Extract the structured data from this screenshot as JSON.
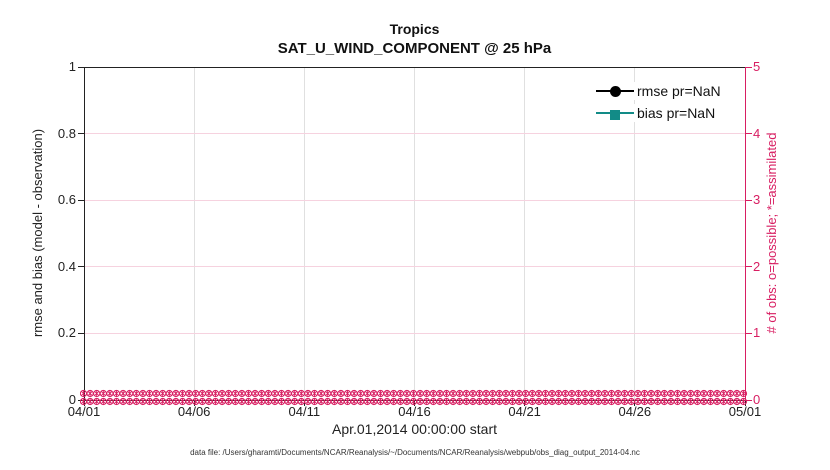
{
  "colors": {
    "pink_axis": "#D81E62",
    "pink_grid": "#F6D2DF",
    "gray_grid": "#E0E0E0",
    "teal": "#128B87",
    "black": "#111111"
  },
  "title": {
    "line1": "Tropics",
    "line2": "SAT_U_WIND_COMPONENT @ 25 hPa"
  },
  "legend": {
    "items": [
      {
        "label": "rmse pr=NaN",
        "color": "#000000",
        "marker": "circle"
      },
      {
        "label": "bias pr=NaN",
        "color": "#128B87",
        "marker": "square"
      }
    ],
    "position": "top-right"
  },
  "axes": {
    "x": {
      "label": "Apr.01,2014 00:00:00 start",
      "ticks": [
        "04/01",
        "04/06",
        "04/11",
        "04/16",
        "04/21",
        "04/26",
        "05/01"
      ]
    },
    "left": {
      "label": "rmse and bias (model - observation)",
      "ticks": [
        "0",
        "0.2",
        "0.4",
        "0.6",
        "0.8",
        "1"
      ],
      "range": [
        0,
        1
      ]
    },
    "right": {
      "label": "# of obs: o=possible; *=assimilated",
      "ticks": [
        "0",
        "1",
        "2",
        "3",
        "4",
        "5"
      ],
      "range": [
        0,
        5
      ],
      "color": "#D81E62"
    }
  },
  "footnote": "data file: /Users/gharamti/Documents/NCAR/Reanalysis/~/Documents/NCAR/Reanalysis/webpub/obs_diag_output_2014-04.nc",
  "chart_data": {
    "type": "line",
    "title": "Tropics",
    "subtitle": "SAT_U_WIND_COMPONENT @ 25 hPa",
    "xlabel": "Apr.01,2014 00:00:00 start",
    "ylabel_left": "rmse and bias (model - observation)",
    "ylabel_right": "# of obs: o=possible; *=assimilated",
    "x_ticklabels": [
      "04/01",
      "04/06",
      "04/11",
      "04/16",
      "04/21",
      "04/26",
      "05/01"
    ],
    "x_range_days": [
      "2014-04-01",
      "2014-05-01"
    ],
    "ylim_left": [
      0,
      1
    ],
    "yticks_left": [
      0,
      0.2,
      0.4,
      0.6,
      0.8,
      1
    ],
    "ylim_right": [
      0,
      5
    ],
    "yticks_right": [
      0,
      1,
      2,
      3,
      4,
      5
    ],
    "grid": true,
    "legend_position": "top-right",
    "series": [
      {
        "name": "rmse pr=NaN",
        "axis": "left",
        "color": "#000000",
        "marker": "circle",
        "values": "NaN - no curve plotted"
      },
      {
        "name": "bias pr=NaN",
        "axis": "left",
        "color": "#128B87",
        "marker": "square",
        "values": "NaN - no curve plotted"
      },
      {
        "name": "# of obs possible (o)",
        "axis": "right",
        "color": "#D81E62",
        "marker": "o",
        "constant_value": 0
      },
      {
        "name": "# of obs assimilated (*)",
        "axis": "right",
        "color": "#D81E62",
        "marker": "*",
        "constant_value": 0
      }
    ],
    "marker_band": {
      "rows": 2,
      "spacing_px": 6.6,
      "note": "dense pink o/* markers along y=0 for every analysis time"
    }
  }
}
